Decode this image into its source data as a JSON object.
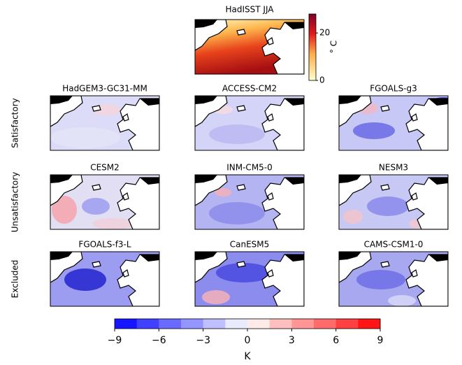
{
  "top_panel": {
    "title": "HadISST JJA",
    "colorbar": {
      "label": "° C",
      "lim": [
        0,
        28
      ],
      "ticks": [
        0,
        20
      ]
    }
  },
  "rows": [
    {
      "label": "Satisfactory",
      "panels": [
        "HadGEM3-GC31-MM",
        "ACCESS-CM2",
        "FGOALS-g3"
      ]
    },
    {
      "label": "Unsatisfactory",
      "panels": [
        "CESM2",
        "INM-CM5-0",
        "NESM3"
      ]
    },
    {
      "label": "Excluded",
      "panels": [
        "FGOALS-f3-L",
        "CanESM5",
        "CAMS-CSM1-0"
      ]
    }
  ],
  "colorbar": {
    "label": "K",
    "lim": [
      -9,
      9
    ],
    "ticks": [
      {
        "value": -9,
        "label": "−9"
      },
      {
        "value": -6,
        "label": "−6"
      },
      {
        "value": -3,
        "label": "−3"
      },
      0,
      3,
      6,
      9
    ]
  }
}
